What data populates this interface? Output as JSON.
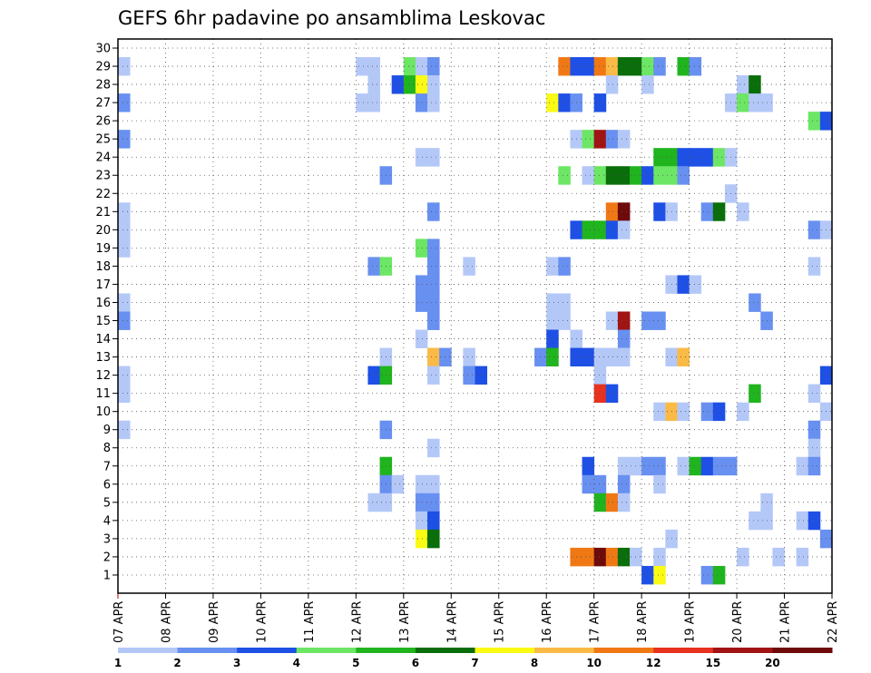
{
  "chart_data": {
    "type": "heatmap",
    "title": "GEFS 6hr padavine po ansamblima Leskovac",
    "xlabel": "",
    "ylabel": "",
    "x_tick_labels": [
      "07 APR",
      "08 APR",
      "09 APR",
      "10 APR",
      "11 APR",
      "12 APR",
      "13 APR",
      "14 APR",
      "15 APR",
      "16 APR",
      "17 APR",
      "18 APR",
      "19 APR",
      "20 APR",
      "21 APR",
      "22 APR"
    ],
    "y_tick_labels": [
      "1",
      "2",
      "3",
      "4",
      "5",
      "6",
      "7",
      "8",
      "9",
      "10",
      "11",
      "12",
      "13",
      "14",
      "15",
      "16",
      "17",
      "18",
      "19",
      "20",
      "21",
      "22",
      "23",
      "24",
      "25",
      "26",
      "27",
      "28",
      "29",
      "30"
    ],
    "ylim": [
      0,
      30
    ],
    "xlim": [
      0,
      60
    ],
    "grid": true,
    "colorbar_labels": [
      "1",
      "2",
      "3",
      "4",
      "5",
      "6",
      "7",
      "8",
      "10",
      "12",
      "15",
      "20"
    ],
    "colorbar_colors": [
      "#b4c8f8",
      "#6890f0",
      "#1e50e6",
      "#6ce664",
      "#20b41e",
      "#0a6e0a",
      "#fafa14",
      "#faba46",
      "#f07814",
      "#e6321e",
      "#a01414",
      "#6e0a0a"
    ],
    "cells": [
      [
        1,
        29,
        1
      ],
      [
        1,
        27,
        2
      ],
      [
        1,
        25,
        2
      ],
      [
        1,
        21,
        1
      ],
      [
        1,
        20,
        1
      ],
      [
        1,
        19,
        1
      ],
      [
        1,
        16,
        1
      ],
      [
        1,
        15,
        2
      ],
      [
        1,
        12,
        1
      ],
      [
        1,
        11,
        1
      ],
      [
        1,
        9,
        1
      ],
      [
        21,
        29,
        1
      ],
      [
        22,
        29,
        1
      ],
      [
        22,
        28,
        1
      ],
      [
        21,
        27,
        1
      ],
      [
        22,
        27,
        1
      ],
      [
        25,
        29,
        4
      ],
      [
        26,
        29,
        1
      ],
      [
        27,
        29,
        2
      ],
      [
        24,
        28,
        3
      ],
      [
        25,
        28,
        5
      ],
      [
        26,
        28,
        7
      ],
      [
        27,
        28,
        1
      ],
      [
        26,
        27,
        2
      ],
      [
        27,
        27,
        1
      ],
      [
        38,
        29,
        9
      ],
      [
        39,
        29,
        3
      ],
      [
        40,
        29,
        3
      ],
      [
        41,
        29,
        9
      ],
      [
        42,
        29,
        8
      ],
      [
        43,
        29,
        6
      ],
      [
        44,
        29,
        6
      ],
      [
        45,
        29,
        4
      ],
      [
        46,
        29,
        2
      ],
      [
        48,
        29,
        5
      ],
      [
        49,
        29,
        2
      ],
      [
        42,
        28,
        1
      ],
      [
        45,
        28,
        1
      ],
      [
        53,
        28,
        1
      ],
      [
        54,
        28,
        6
      ],
      [
        37,
        27,
        7
      ],
      [
        38,
        27,
        3
      ],
      [
        39,
        27,
        2
      ],
      [
        41,
        27,
        3
      ],
      [
        52,
        27,
        1
      ],
      [
        53,
        27,
        4
      ],
      [
        54,
        27,
        1
      ],
      [
        55,
        27,
        1
      ],
      [
        59,
        26,
        4
      ],
      [
        60,
        26,
        3
      ],
      [
        39,
        25,
        1
      ],
      [
        40,
        25,
        4
      ],
      [
        41,
        25,
        11
      ],
      [
        42,
        25,
        2
      ],
      [
        43,
        25,
        1
      ],
      [
        26,
        24,
        1
      ],
      [
        27,
        24,
        1
      ],
      [
        46,
        24,
        5
      ],
      [
        47,
        24,
        5
      ],
      [
        48,
        24,
        3
      ],
      [
        49,
        24,
        3
      ],
      [
        50,
        24,
        3
      ],
      [
        51,
        24,
        4
      ],
      [
        52,
        24,
        1
      ],
      [
        23,
        23,
        2
      ],
      [
        38,
        23,
        4
      ],
      [
        40,
        23,
        1
      ],
      [
        41,
        23,
        4
      ],
      [
        42,
        23,
        6
      ],
      [
        43,
        23,
        6
      ],
      [
        44,
        23,
        5
      ],
      [
        45,
        23,
        3
      ],
      [
        46,
        23,
        4
      ],
      [
        47,
        23,
        4
      ],
      [
        48,
        23,
        2
      ],
      [
        52,
        22,
        1
      ],
      [
        27,
        21,
        2
      ],
      [
        42,
        21,
        9
      ],
      [
        43,
        21,
        12
      ],
      [
        46,
        21,
        3
      ],
      [
        47,
        21,
        1
      ],
      [
        50,
        21,
        2
      ],
      [
        51,
        21,
        6
      ],
      [
        53,
        21,
        1
      ],
      [
        39,
        20,
        3
      ],
      [
        40,
        20,
        5
      ],
      [
        41,
        20,
        5
      ],
      [
        42,
        20,
        3
      ],
      [
        43,
        20,
        1
      ],
      [
        59,
        20,
        2
      ],
      [
        60,
        20,
        1
      ],
      [
        26,
        19,
        4
      ],
      [
        27,
        19,
        2
      ],
      [
        22,
        18,
        2
      ],
      [
        23,
        18,
        4
      ],
      [
        27,
        18,
        2
      ],
      [
        30,
        18,
        1
      ],
      [
        37,
        18,
        1
      ],
      [
        38,
        18,
        2
      ],
      [
        59,
        18,
        1
      ],
      [
        26,
        17,
        2
      ],
      [
        27,
        17,
        2
      ],
      [
        47,
        17,
        1
      ],
      [
        48,
        17,
        3
      ],
      [
        49,
        17,
        1
      ],
      [
        26,
        16,
        2
      ],
      [
        27,
        16,
        2
      ],
      [
        37,
        16,
        1
      ],
      [
        38,
        16,
        1
      ],
      [
        54,
        16,
        2
      ],
      [
        27,
        15,
        2
      ],
      [
        37,
        15,
        1
      ],
      [
        38,
        15,
        1
      ],
      [
        42,
        15,
        1
      ],
      [
        43,
        15,
        11
      ],
      [
        45,
        15,
        2
      ],
      [
        46,
        15,
        2
      ],
      [
        55,
        15,
        2
      ],
      [
        26,
        14,
        1
      ],
      [
        37,
        14,
        3
      ],
      [
        39,
        14,
        1
      ],
      [
        43,
        14,
        2
      ],
      [
        23,
        13,
        1
      ],
      [
        27,
        13,
        8
      ],
      [
        28,
        13,
        2
      ],
      [
        30,
        13,
        1
      ],
      [
        36,
        13,
        2
      ],
      [
        37,
        13,
        5
      ],
      [
        39,
        13,
        3
      ],
      [
        40,
        13,
        3
      ],
      [
        41,
        13,
        1
      ],
      [
        42,
        13,
        1
      ],
      [
        43,
        13,
        1
      ],
      [
        47,
        13,
        1
      ],
      [
        48,
        13,
        8
      ],
      [
        22,
        12,
        3
      ],
      [
        23,
        12,
        5
      ],
      [
        27,
        12,
        1
      ],
      [
        30,
        12,
        2
      ],
      [
        31,
        12,
        3
      ],
      [
        41,
        12,
        1
      ],
      [
        60,
        12,
        3
      ],
      [
        41,
        11,
        10
      ],
      [
        42,
        11,
        3
      ],
      [
        54,
        11,
        5
      ],
      [
        59,
        11,
        1
      ],
      [
        46,
        10,
        1
      ],
      [
        47,
        10,
        8
      ],
      [
        48,
        10,
        1
      ],
      [
        50,
        10,
        2
      ],
      [
        51,
        10,
        3
      ],
      [
        53,
        10,
        1
      ],
      [
        60,
        10,
        1
      ],
      [
        23,
        9,
        2
      ],
      [
        59,
        9,
        2
      ],
      [
        27,
        8,
        1
      ],
      [
        59,
        8,
        1
      ],
      [
        23,
        7,
        5
      ],
      [
        40,
        7,
        3
      ],
      [
        43,
        7,
        1
      ],
      [
        44,
        7,
        1
      ],
      [
        45,
        7,
        2
      ],
      [
        46,
        7,
        2
      ],
      [
        48,
        7,
        1
      ],
      [
        49,
        7,
        5
      ],
      [
        50,
        7,
        3
      ],
      [
        51,
        7,
        2
      ],
      [
        52,
        7,
        2
      ],
      [
        58,
        7,
        1
      ],
      [
        59,
        7,
        2
      ],
      [
        23,
        6,
        2
      ],
      [
        24,
        6,
        1
      ],
      [
        26,
        6,
        1
      ],
      [
        27,
        6,
        1
      ],
      [
        40,
        6,
        2
      ],
      [
        41,
        6,
        2
      ],
      [
        43,
        6,
        2
      ],
      [
        46,
        6,
        1
      ],
      [
        22,
        5,
        1
      ],
      [
        23,
        5,
        1
      ],
      [
        26,
        5,
        2
      ],
      [
        27,
        5,
        2
      ],
      [
        41,
        5,
        5
      ],
      [
        42,
        5,
        9
      ],
      [
        43,
        5,
        1
      ],
      [
        55,
        5,
        1
      ],
      [
        26,
        4,
        1
      ],
      [
        27,
        4,
        3
      ],
      [
        54,
        4,
        1
      ],
      [
        55,
        4,
        1
      ],
      [
        58,
        4,
        1
      ],
      [
        59,
        4,
        3
      ],
      [
        26,
        3,
        7
      ],
      [
        27,
        3,
        6
      ],
      [
        47,
        3,
        1
      ],
      [
        60,
        3,
        2
      ],
      [
        39,
        2,
        9
      ],
      [
        40,
        2,
        9
      ],
      [
        41,
        2,
        12
      ],
      [
        42,
        2,
        9
      ],
      [
        43,
        2,
        6
      ],
      [
        44,
        2,
        1
      ],
      [
        46,
        2,
        1
      ],
      [
        53,
        2,
        1
      ],
      [
        56,
        2,
        1
      ],
      [
        58,
        2,
        1
      ],
      [
        45,
        1,
        3
      ],
      [
        46,
        1,
        7
      ],
      [
        50,
        1,
        2
      ],
      [
        51,
        1,
        5
      ]
    ]
  }
}
